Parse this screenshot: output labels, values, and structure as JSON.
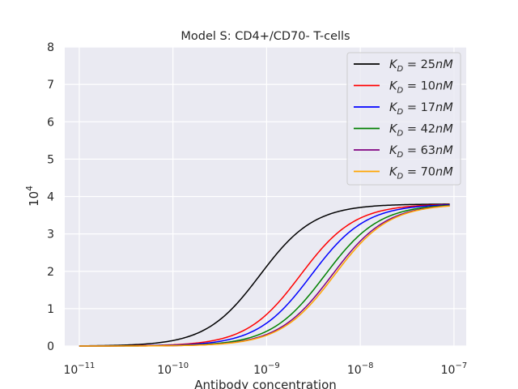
{
  "chart_data": {
    "type": "line",
    "title": "Model S: CD4+/CD70- T-cells",
    "xlabel": "Antibody concentration",
    "ylabel": "10^4",
    "xscale": "log",
    "xlim": [
      7e-12,
      1.35e-07
    ],
    "ylim": [
      0,
      8
    ],
    "xticks": [
      1e-11,
      1e-10,
      1e-09,
      1e-08,
      1e-07
    ],
    "xtick_exponents": [
      "−11",
      "−10",
      "−9",
      "−8",
      "−7"
    ],
    "xtick_base": "10",
    "yticks": [
      0,
      1,
      2,
      3,
      4,
      5,
      6,
      7,
      8
    ],
    "grid": true,
    "legend_position": "top-right",
    "x_range": [
      1e-11,
      9e-08
    ],
    "max_y": 3.8,
    "series": [
      {
        "name": "K_D = 25nM",
        "kd_label": "25",
        "color": "#000000",
        "ec50": 8.5e-10
      },
      {
        "name": "K_D = 10nM",
        "kd_label": "10",
        "color": "#ff0000",
        "ec50": 2.3e-09
      },
      {
        "name": "K_D = 17nM",
        "kd_label": "17",
        "color": "#0000ff",
        "ec50": 3e-09
      },
      {
        "name": "K_D = 42nM",
        "kd_label": "42",
        "color": "#008000",
        "ec50": 4.2e-09
      },
      {
        "name": "K_D = 63nM",
        "kd_label": "63",
        "color": "#800080",
        "ec50": 5e-09
      },
      {
        "name": "K_D = 70nM",
        "kd_label": "70",
        "color": "#ffa500",
        "ec50": 5.3e-09
      }
    ]
  }
}
